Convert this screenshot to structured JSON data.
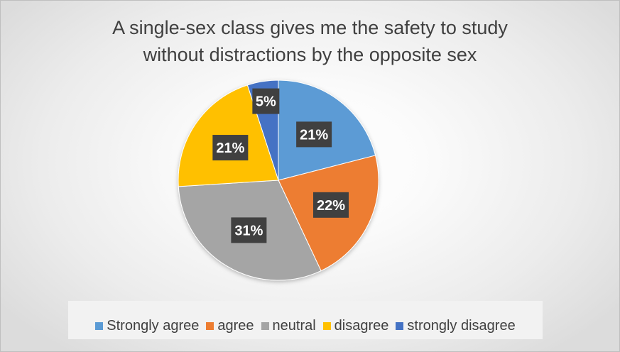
{
  "chart_data": {
    "type": "pie",
    "title_lines": [
      "A single-sex class gives me the safety to study",
      "without distractions by the opposite sex"
    ],
    "categories": [
      "Strongly agree",
      "agree",
      "neutral",
      "disagree",
      "strongly disagree"
    ],
    "values": [
      21,
      22,
      31,
      21,
      5
    ],
    "labels": [
      "21%",
      "22%",
      "31%",
      "21%",
      "5%"
    ],
    "colors": [
      "#5b9bd5",
      "#ed7d31",
      "#a5a5a5",
      "#ffc000",
      "#4472c4"
    ],
    "start_angle": "12 o'clock, clockwise",
    "legend_position": "bottom"
  }
}
